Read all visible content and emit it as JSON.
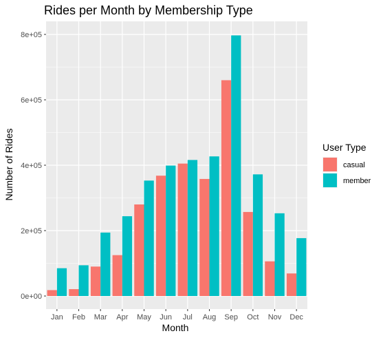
{
  "chart_data": {
    "type": "bar",
    "title": "Rides per Month by Membership Type",
    "xlabel": "Month",
    "ylabel": "Number of Rides",
    "categories": [
      "Jan",
      "Feb",
      "Mar",
      "Apr",
      "May",
      "Jun",
      "Jul",
      "Aug",
      "Sep",
      "Oct",
      "Nov",
      "Dec"
    ],
    "series": [
      {
        "name": "casual",
        "color": "#F8766D",
        "values": [
          18000,
          21000,
          90000,
          125000,
          280000,
          368000,
          405000,
          358000,
          660000,
          257000,
          106000,
          69000
        ]
      },
      {
        "name": "member",
        "color": "#00BFC4",
        "values": [
          85000,
          94000,
          194000,
          244000,
          353000,
          399000,
          416000,
          427000,
          797000,
          372000,
          253000,
          177000
        ]
      }
    ],
    "ylim": [
      -40000,
      840000
    ],
    "yticks": [
      0,
      200000,
      400000,
      600000,
      800000
    ],
    "ytick_labels": [
      "0e+00",
      "2e+05",
      "4e+05",
      "6e+05",
      "8e+05"
    ],
    "grid": true,
    "legend": {
      "title": "User Type",
      "position": "right"
    }
  }
}
